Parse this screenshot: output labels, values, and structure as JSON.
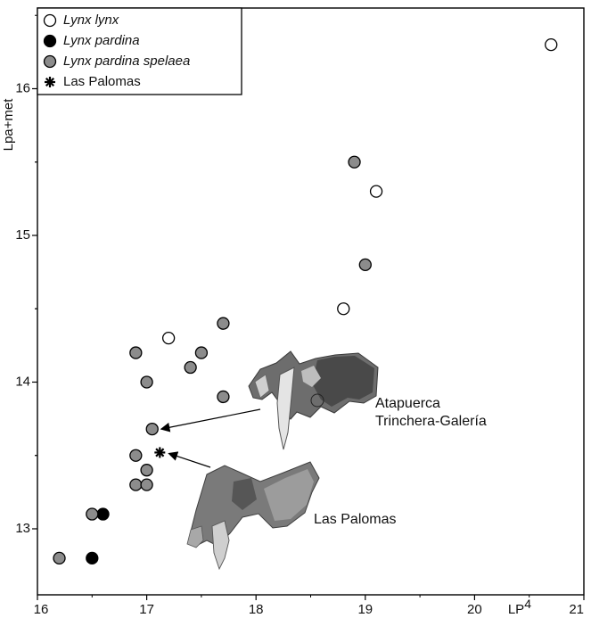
{
  "chart_data": {
    "type": "scatter",
    "title": "",
    "xlabel": "LP",
    "xlabel_superscript": "4",
    "ylabel": "Lpa+met",
    "xlim": [
      16,
      21
    ],
    "ylim": [
      12.55,
      16.55
    ],
    "x_ticks": [
      16,
      17,
      18,
      19,
      20,
      21
    ],
    "x_tick_labels": [
      "16",
      "17",
      "18",
      "19",
      "20",
      "21"
    ],
    "y_ticks": [
      13,
      14,
      15,
      16
    ],
    "y_tick_labels": [
      "13",
      "14",
      "15",
      "16"
    ],
    "grid": false,
    "legend_position": "top-left",
    "series": [
      {
        "name": "Lynx lynx",
        "marker": "open-circle",
        "color": "#ffffff",
        "points": [
          [
            17.2,
            14.3
          ],
          [
            18.8,
            14.5
          ],
          [
            19.1,
            15.3
          ],
          [
            20.7,
            16.3
          ]
        ]
      },
      {
        "name": "Lynx pardina",
        "marker": "filled-circle",
        "color": "#000000",
        "points": [
          [
            16.5,
            12.8
          ],
          [
            16.6,
            13.1
          ]
        ]
      },
      {
        "name": "Lynx pardina spelaea",
        "marker": "gray-circle",
        "color": "#8c8c8c",
        "points": [
          [
            16.2,
            12.8
          ],
          [
            16.5,
            13.1
          ],
          [
            16.9,
            13.3
          ],
          [
            17.0,
            13.3
          ],
          [
            17.0,
            13.4
          ],
          [
            16.9,
            13.5
          ],
          [
            17.05,
            13.68
          ],
          [
            17.0,
            14.0
          ],
          [
            16.9,
            14.2
          ],
          [
            17.4,
            14.1
          ],
          [
            17.5,
            14.2
          ],
          [
            17.7,
            13.9
          ],
          [
            17.7,
            14.4
          ],
          [
            18.9,
            15.5
          ],
          [
            19.0,
            14.8
          ]
        ]
      },
      {
        "name": "Las Palomas",
        "marker": "asterisk",
        "color": "#000000",
        "points": [
          [
            17.12,
            13.52
          ]
        ]
      }
    ],
    "annotations": [
      {
        "lines": [
          "Atapuerca",
          "Trinchera-Galería"
        ],
        "target": [
          17.05,
          13.68
        ]
      },
      {
        "lines": [
          "Las Palomas"
        ],
        "target": [
          17.12,
          13.52
        ]
      }
    ]
  }
}
